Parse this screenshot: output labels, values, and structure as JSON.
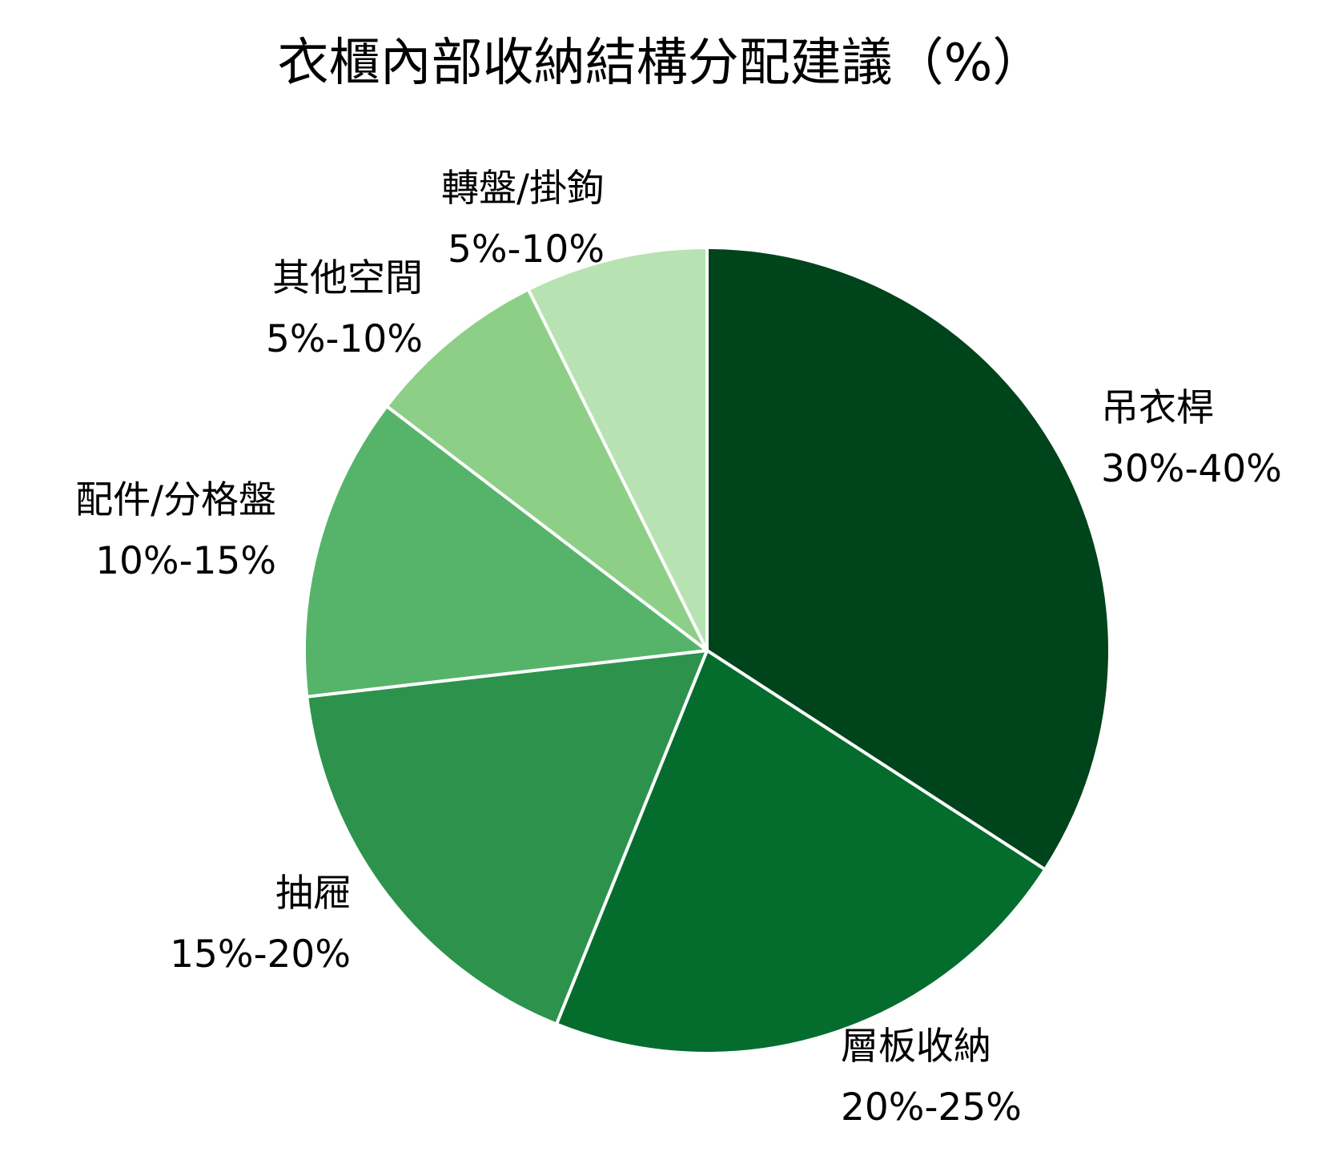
{
  "chart_data": {
    "type": "pie",
    "title": "衣櫃內部收納結構分配建議（%）",
    "start": "12 o'clock",
    "direction": "clockwise",
    "slices": [
      {
        "label": "吊衣桿",
        "range_label": "30%-40%",
        "value": 35,
        "color": "#00441b"
      },
      {
        "label": "層板收納",
        "range_label": "20%-25%",
        "value": 22.5,
        "color": "#046d2e"
      },
      {
        "label": "抽屜",
        "range_label": "15%-20%",
        "value": 17.5,
        "color": "#2d934c"
      },
      {
        "label": "配件/分格盤",
        "range_label": "10%-15%",
        "value": 12.5,
        "color": "#56b46a"
      },
      {
        "label": "其他空間",
        "range_label": "5%-10%",
        "value": 7.5,
        "color": "#8ecf88"
      },
      {
        "label": "轉盤/掛鉤",
        "range_label": "5%-10%",
        "value": 7.5,
        "color": "#b7e2b2"
      }
    ]
  }
}
